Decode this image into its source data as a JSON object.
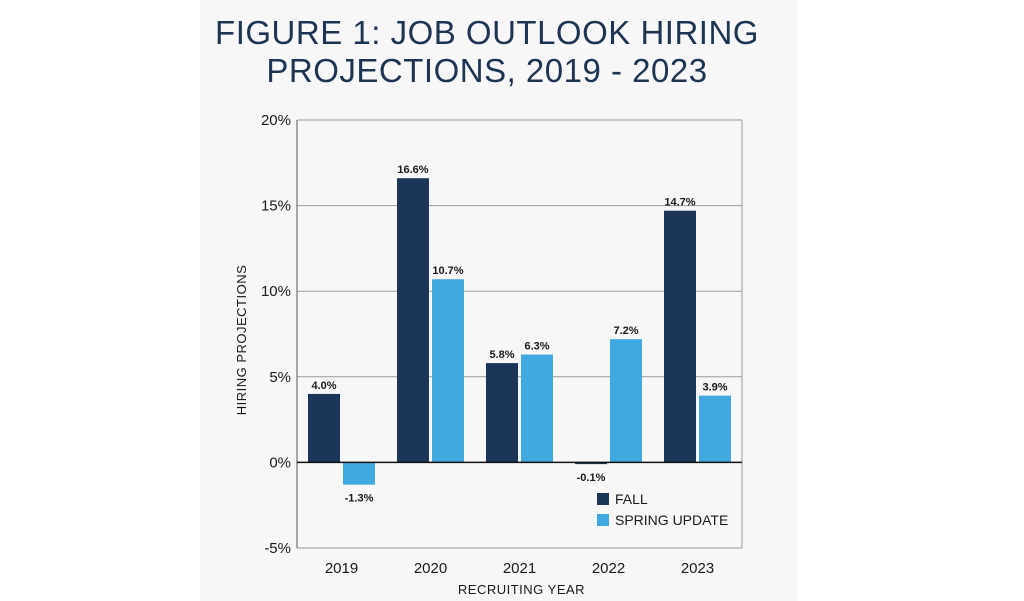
{
  "chart_data": {
    "type": "bar",
    "title_lines": [
      "FIGURE 1: JOB OUTLOOK HIRING",
      "PROJECTIONS, 2019 - 2023"
    ],
    "xlabel": "RECRUITING YEAR",
    "ylabel": "HIRING PROJECTIONS",
    "categories": [
      "2019",
      "2020",
      "2021",
      "2022",
      "2023"
    ],
    "series": [
      {
        "name": "FALL",
        "values": [
          4.0,
          16.6,
          5.8,
          -0.1,
          14.7
        ],
        "labels": [
          "4.0%",
          "16.6%",
          "5.8%",
          "-0.1%",
          "14.7%"
        ],
        "color": "#1b3659"
      },
      {
        "name": "SPRING UPDATE",
        "values": [
          -1.3,
          10.7,
          6.3,
          7.2,
          3.9
        ],
        "labels": [
          "-1.3%",
          "10.7%",
          "6.3%",
          "7.2%",
          "3.9%"
        ],
        "color": "#3fa9e0"
      }
    ],
    "ylim": [
      -5,
      20
    ],
    "yticks": [
      -5,
      0,
      5,
      10,
      15,
      20
    ],
    "ytick_labels": [
      "-5%",
      "0%",
      "5%",
      "10%",
      "15%",
      "20%"
    ],
    "grid": true,
    "legend_position": "bottom-right"
  }
}
